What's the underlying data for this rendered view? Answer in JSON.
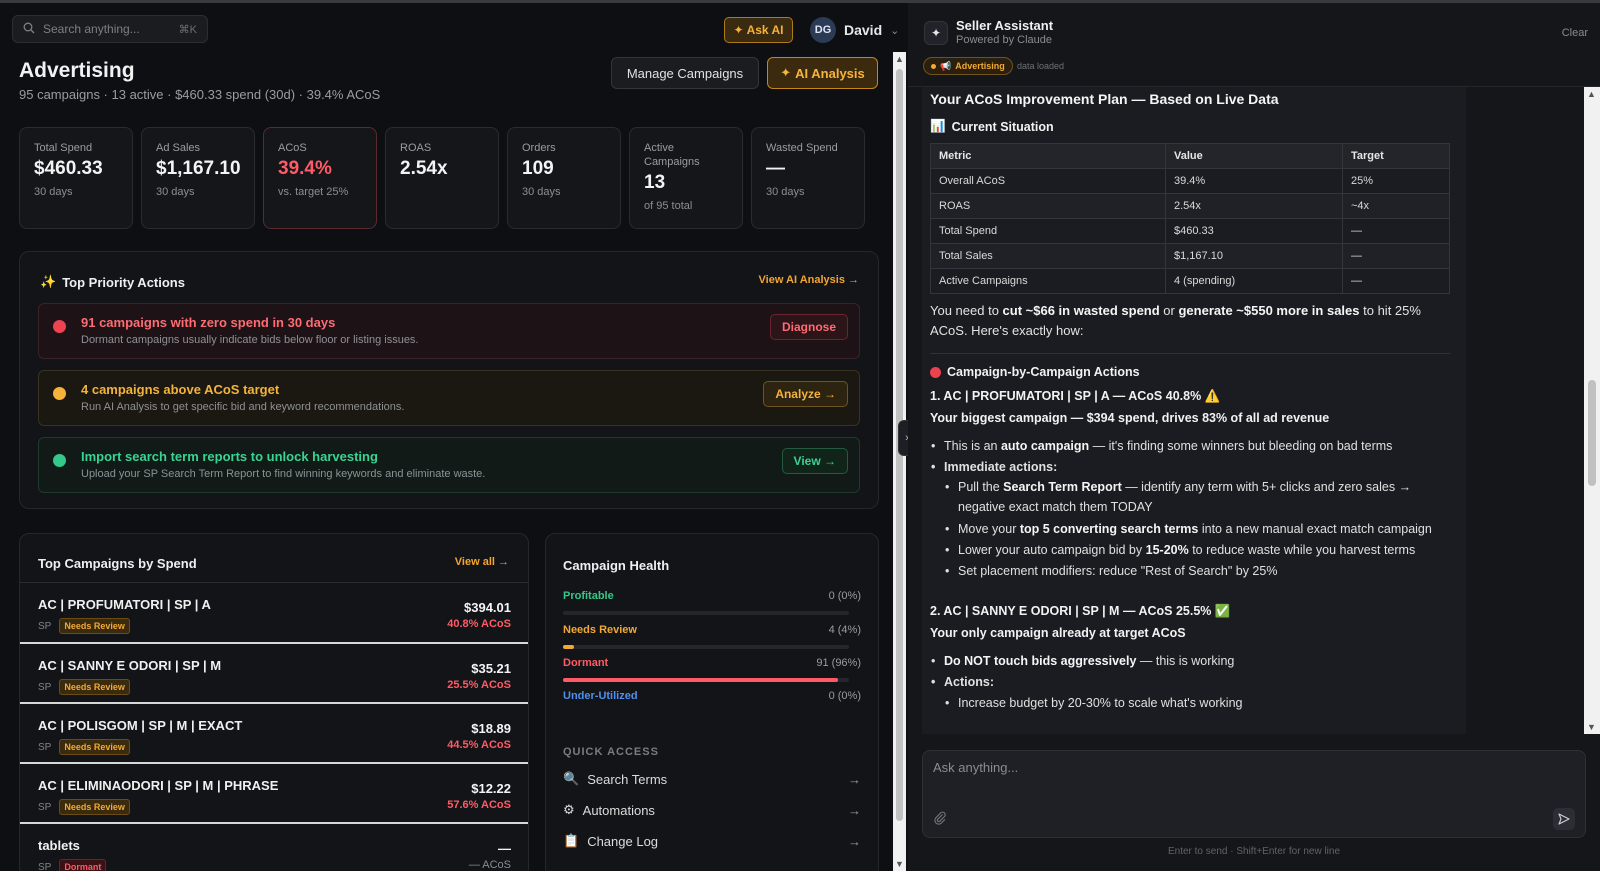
{
  "topbar": {
    "search_placeholder": "Search anything...",
    "search_kbd": "⌘K",
    "ask_ai": "Ask AI",
    "user_initials": "DG",
    "user_name": "David"
  },
  "page": {
    "title": "Advertising",
    "subtitle": "95 campaigns · 13 active · $460.33 spend (30d) · 39.4% ACoS",
    "manage_btn": "Manage Campaigns",
    "ai_btn": "AI Analysis"
  },
  "stats": [
    {
      "label": "Total Spend",
      "value": "$460.33",
      "sub": "30 days"
    },
    {
      "label": "Ad Sales",
      "value": "$1,167.10",
      "sub": "30 days"
    },
    {
      "label": "ACoS",
      "value": "39.4%",
      "sub": "vs. target 25%"
    },
    {
      "label": "ROAS",
      "value": "2.54x",
      "sub": ""
    },
    {
      "label": "Orders",
      "value": "109",
      "sub": "30 days"
    },
    {
      "label": "Active Campaigns",
      "value": "13",
      "sub": "of 95 total"
    },
    {
      "label": "Wasted Spend",
      "value": "—",
      "sub": "30 days"
    }
  ],
  "priority": {
    "title": "Top Priority Actions",
    "link": "View AI Analysis →",
    "actions": [
      {
        "title": "91 campaigns with zero spend in 30 days",
        "desc": "Dormant campaigns usually indicate bids below floor or listing issues.",
        "button": "Diagnose"
      },
      {
        "title": "4 campaigns above ACoS target",
        "desc": "Run AI Analysis to get specific bid and keyword recommendations.",
        "button": "Analyze →"
      },
      {
        "title": "Import search term reports to unlock harvesting",
        "desc": "Upload your SP Search Term Report to find winning keywords and eliminate waste.",
        "button": "View →"
      }
    ]
  },
  "top_campaigns": {
    "title": "Top Campaigns by Spend",
    "link": "View all →",
    "rows": [
      {
        "name": "AC | PROFUMATORI | SP | A",
        "type": "SP",
        "badge": "Needs Review",
        "spend": "$394.01",
        "acos": "40.8% ACoS"
      },
      {
        "name": "AC | SANNY E ODORI | SP | M",
        "type": "SP",
        "badge": "Needs Review",
        "spend": "$35.21",
        "acos": "25.5% ACoS"
      },
      {
        "name": "AC | POLISGOM | SP | M | EXACT",
        "type": "SP",
        "badge": "Needs Review",
        "spend": "$18.89",
        "acos": "44.5% ACoS"
      },
      {
        "name": "AC | ELIMINAODORI | SP | M | PHRASE",
        "type": "SP",
        "badge": "Needs Review",
        "spend": "$12.22",
        "acos": "57.6% ACoS"
      },
      {
        "name": "tablets",
        "type": "SP",
        "badge": "Dormant",
        "spend": "—",
        "acos": "— ACoS"
      }
    ]
  },
  "health": {
    "title": "Campaign Health",
    "rows": [
      {
        "label": "Profitable",
        "value": "0 (0%)",
        "pct": 0,
        "color": "#33c98a"
      },
      {
        "label": "Needs Review",
        "value": "4 (4%)",
        "pct": 4,
        "color": "#f1a935"
      },
      {
        "label": "Dormant",
        "value": "91 (96%)",
        "pct": 96,
        "color": "#ff5b66"
      },
      {
        "label": "Under-Utilized",
        "value": "0 (0%)",
        "pct": 0,
        "color": "#4f8ff0"
      }
    ],
    "quick_access_title": "QUICK ACCESS",
    "quick_access": [
      {
        "label": "Search Terms",
        "icon": "🔍",
        "arrow": "→"
      },
      {
        "label": "Automations",
        "icon": "⚙",
        "arrow": "→"
      },
      {
        "label": "Change Log",
        "icon": "📋",
        "arrow": "→"
      }
    ]
  },
  "assistant": {
    "title": "Seller Assistant",
    "powered": "Powered by Claude",
    "clear": "Clear",
    "tag": "Advertising",
    "loaded": "data loaded",
    "heading": "Your ACoS Improvement Plan — Based on Live Data",
    "current_situation": "Current Situation",
    "table": {
      "headers": [
        "Metric",
        "Value",
        "Target"
      ],
      "rows": [
        [
          "Overall ACoS",
          "39.4%",
          "25%"
        ],
        [
          "ROAS",
          "2.54x",
          "~4x"
        ],
        [
          "Total Spend",
          "$460.33",
          "—"
        ],
        [
          "Total Sales",
          "$1,167.10",
          "—"
        ],
        [
          "Active Campaigns",
          "4 (spending)",
          "—"
        ]
      ]
    },
    "intro_1": "You need to ",
    "intro_b1": "cut ~$66 in wasted spend",
    "intro_2": " or ",
    "intro_b2": "generate ~$550 more in sales",
    "intro_3": " to hit 25% ACoS. Here's exactly how:",
    "campaign_actions": "Campaign-by-Campaign Actions",
    "c1_title": "1. AC | PROFUMATORI | SP | A — ACoS 40.8% ⚠️",
    "c1_sub": "Your biggest campaign — $394 spend, drives 83% of all ad revenue",
    "c1_b1a": "This is an ",
    "c1_b1b": "auto campaign",
    "c1_b1c": " — it's finding some winners but bleeding on bad terms",
    "c1_b2": "Immediate actions:",
    "c1_s1a": "Pull the ",
    "c1_s1b": "Search Term Report",
    "c1_s1c": " — identify any term with 5+ clicks and zero sales → negative exact match them TODAY",
    "c1_s2a": "Move your ",
    "c1_s2b": "top 5 converting search terms",
    "c1_s2c": " into a new manual exact match campaign",
    "c1_s3a": "Lower your auto campaign bid by ",
    "c1_s3b": "15-20%",
    "c1_s3c": " to reduce waste while you harvest terms",
    "c1_s4": "Set placement modifiers: reduce \"Rest of Search\" by 25%",
    "c2_title": "2. AC | SANNY E ODORI | SP | M — ACoS 25.5% ✅",
    "c2_sub": "Your only campaign already at target ACoS",
    "c2_b1a": "Do NOT touch bids aggressively",
    "c2_b1b": " — this is working",
    "c2_b2": "Actions:",
    "c2_s1": "Increase budget by 20-30% to scale what's working",
    "input_placeholder": "Ask anything...",
    "hint": "Enter to send · Shift+Enter for new line"
  }
}
